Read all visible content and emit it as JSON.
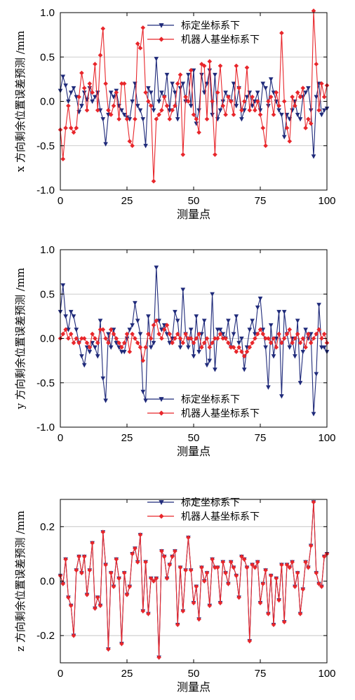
{
  "colors": {
    "calib": "#1f2a7a",
    "robot": "#e8262b",
    "grid": "#bdbdbd"
  },
  "chart_data": [
    {
      "type": "line",
      "ylabel": "x 方向剩余位置误差预测 /mm",
      "xlabel": "测量点",
      "xlim": [
        0,
        100
      ],
      "ylim": [
        -1.0,
        1.0
      ],
      "xticks": [
        "0",
        "25",
        "50",
        "75",
        "100"
      ],
      "yticks": [
        "-1.0",
        "-0.5",
        "0.0",
        "0.5",
        "1.0"
      ],
      "grid": "horizontal",
      "legend": "top-center",
      "series": [
        {
          "name": "标定坐标系下",
          "marker": "triangle-down",
          "values": [
            0.12,
            0.28,
            0.18,
            0.0,
            0.1,
            0.15,
            0.05,
            -0.12,
            -0.05,
            0.1,
            0.02,
            0.15,
            0.0,
            0.05,
            0.1,
            -0.1,
            -0.2,
            -0.48,
            -0.15,
            0.1,
            0.05,
            0.12,
            -0.05,
            -0.1,
            -0.15,
            -0.18,
            -0.2,
            0.0,
            0.2,
            -0.05,
            -0.1,
            -0.2,
            -0.5,
            0.15,
            0.1,
            -0.1,
            0.48,
            0.0,
            0.1,
            0.05,
            0.3,
            -0.1,
            0.2,
            0.1,
            -0.2,
            0.15,
            0.2,
            0.0,
            0.3,
            -0.05,
            0.35,
            -0.25,
            -0.1,
            0.3,
            0.1,
            0.2,
            0.35,
            -0.15,
            0.3,
            -0.2,
            -0.1,
            0.0,
            0.1,
            0.05,
            0.0,
            0.2,
            -0.05,
            0.15,
            -0.2,
            -0.1,
            0.05,
            0.1,
            -0.05,
            0.0,
            0.1,
            -0.1,
            0.2,
            0.15,
            -0.05,
            0.25,
            0.1,
            0.0,
            -0.1,
            -0.15,
            -0.4,
            -0.15,
            -0.2,
            -0.1,
            0.0,
            -0.15,
            -0.2,
            0.05,
            0.1,
            0.15,
            -0.1,
            -0.62,
            0.05,
            0.2,
            -0.15,
            -0.1,
            -0.08
          ]
        },
        {
          "name": "机器人基坐标系下",
          "marker": "diamond",
          "values": [
            -0.32,
            -0.65,
            -0.3,
            -0.05,
            -0.3,
            -0.35,
            -0.3,
            0.05,
            0.32,
            0.15,
            -0.1,
            0.2,
            0.1,
            0.42,
            -0.1,
            0.52,
            0.82,
            0.2,
            -0.1,
            -0.15,
            -0.05,
            0.1,
            -0.2,
            0.2,
            0.2,
            -0.2,
            -0.45,
            -0.5,
            -0.2,
            0.65,
            0.6,
            0.83,
            0.1,
            0.0,
            -0.05,
            -0.9,
            -0.2,
            -0.15,
            -0.1,
            0.05,
            -0.05,
            -0.2,
            -0.1,
            -0.05,
            0.2,
            0.3,
            -0.6,
            0.05,
            0.0,
            0.35,
            -0.15,
            -0.2,
            -0.35,
            0.42,
            0.4,
            -0.2,
            0.45,
            0.0,
            -0.6,
            0.1,
            0.4,
            -0.05,
            -0.15,
            0.05,
            0.0,
            -0.15,
            0.4,
            0.15,
            -0.1,
            0.0,
            0.38,
            -0.1,
            0.05,
            -0.1,
            0.0,
            -0.15,
            -0.3,
            -0.5,
            0.0,
            0.05,
            -0.15,
            0.1,
            -0.05,
            0.77,
            0.0,
            -0.3,
            -0.45,
            0.05,
            -0.05,
            0.1,
            0.05,
            0.15,
            -0.3,
            -0.2,
            -0.25,
            1.02,
            0.42,
            -0.1,
            0.2,
            0.05,
            0.18
          ]
        }
      ]
    },
    {
      "type": "line",
      "ylabel": "y 方向剩余位置误差预测 /mm",
      "xlabel": "测量点",
      "xlim": [
        0,
        100
      ],
      "ylim": [
        -1.0,
        1.0
      ],
      "xticks": [
        "0",
        "25",
        "50",
        "75",
        "100"
      ],
      "yticks": [
        "-1.0",
        "-0.5",
        "0.0",
        "0.5",
        "1.0"
      ],
      "grid": "horizontal",
      "legend": "bottom-center",
      "series": [
        {
          "name": "标定坐标系下",
          "marker": "triangle-down",
          "values": [
            0.3,
            0.6,
            0.25,
            0.1,
            0.3,
            0.25,
            0.1,
            -0.05,
            -0.2,
            -0.3,
            -0.1,
            -0.15,
            -0.05,
            -0.1,
            -0.2,
            0.2,
            -0.45,
            -0.7,
            0.05,
            -0.1,
            0.1,
            -0.05,
            -0.1,
            -0.15,
            -0.15,
            0.0,
            0.1,
            0.15,
            0.4,
            0.2,
            0.05,
            -0.6,
            -0.7,
            0.25,
            -0.1,
            -0.05,
            0.8,
            0.2,
            0.1,
            0.15,
            0.05,
            -0.05,
            0.0,
            0.3,
            0.2,
            -0.1,
            0.55,
            0.05,
            -0.1,
            0.1,
            -0.2,
            0.25,
            -0.15,
            0.05,
            0.2,
            -0.3,
            -0.25,
            0.5,
            -0.35,
            0.1,
            0.1,
            0.05,
            0.0,
            0.2,
            -0.1,
            0.05,
            0.25,
            -0.05,
            0.0,
            -0.35,
            -0.1,
            0.1,
            0.2,
            0.05,
            0.35,
            0.45,
            0.1,
            -0.1,
            -0.55,
            0.15,
            -0.2,
            0.0,
            0.3,
            -0.65,
            0.3,
            0.05,
            -0.1,
            0.0,
            -0.2,
            0.2,
            -0.5,
            -0.15,
            0.1,
            0.0,
            0.05,
            -0.85,
            -0.4,
            0.38,
            -0.1,
            -0.1,
            -0.15
          ]
        },
        {
          "name": "机器人基坐标系下",
          "marker": "diamond",
          "values": [
            0.0,
            0.05,
            0.1,
            0.0,
            0.05,
            -0.05,
            0.0,
            -0.05,
            0.0,
            0.0,
            -0.05,
            -0.1,
            0.05,
            0.0,
            -0.05,
            0.1,
            0.1,
            0.0,
            -0.05,
            0.1,
            0.05,
            0.0,
            -0.05,
            -0.1,
            -0.05,
            0.05,
            -0.15,
            0.05,
            0.0,
            -0.05,
            -0.1,
            -0.25,
            -0.1,
            0.05,
            0.0,
            0.15,
            0.2,
            0.05,
            0.0,
            0.1,
            0.15,
            0.05,
            -0.05,
            0.0,
            0.05,
            0.0,
            -0.05,
            0.05,
            0.0,
            0.0,
            -0.05,
            0.0,
            0.05,
            -0.1,
            -0.05,
            0.0,
            -0.1,
            -0.05,
            0.0,
            0.0,
            0.05,
            0.0,
            0.0,
            -0.05,
            -0.1,
            -0.1,
            -0.15,
            -0.1,
            -0.15,
            -0.2,
            -0.15,
            -0.1,
            -0.05,
            0.0,
            0.05,
            0.1,
            0.05,
            0.0,
            0.0,
            -0.05,
            0.0,
            -0.1,
            0.05,
            -0.05,
            0.0,
            0.05,
            0.1,
            -0.05,
            0.0,
            0.05,
            -0.05,
            0.0,
            -0.1,
            0.05,
            -0.05,
            0.0,
            0.05,
            0.1,
            0.0,
            0.05,
            -0.05
          ]
        }
      ]
    },
    {
      "type": "line",
      "ylabel": "z 方向剩余位置误差预测 /mm",
      "xlabel": "测量点",
      "xlim": [
        0,
        100
      ],
      "ylim": [
        -0.3,
        0.3
      ],
      "xticks": [
        "0",
        "25",
        "50",
        "75",
        "100"
      ],
      "yticks": [
        "-0.2",
        "0.0",
        "0.2"
      ],
      "ytickvals": [
        -0.2,
        0.0,
        0.2
      ],
      "grid": "horizontal",
      "legend": "top-center",
      "series": [
        {
          "name": "标定坐标系下",
          "marker": "triangle-down",
          "values": [
            0.02,
            -0.01,
            0.08,
            -0.06,
            -0.09,
            -0.2,
            0.04,
            0.09,
            0.03,
            0.09,
            -0.05,
            0.04,
            0.14,
            -0.1,
            -0.06,
            -0.09,
            0.18,
            0.06,
            -0.25,
            0.03,
            -0.02,
            0.08,
            0.01,
            -0.23,
            0.03,
            -0.05,
            -0.02,
            0.1,
            0.12,
            0.07,
            0.17,
            -0.11,
            0.07,
            -0.12,
            0.01,
            0.0,
            0.01,
            -0.28,
            0.11,
            0.09,
            0.01,
            0.06,
            0.09,
            0.11,
            -0.16,
            0.05,
            -0.11,
            0.04,
            0.16,
            0.04,
            -0.08,
            -0.02,
            -0.14,
            0.05,
            0.0,
            0.03,
            -0.09,
            0.08,
            0.05,
            0.05,
            -0.08,
            0.07,
            0.03,
            -0.01,
            0.07,
            0.05,
            0.02,
            -0.06,
            0.09,
            0.08,
            0.05,
            -0.22,
            0.06,
            0.05,
            0.07,
            -0.08,
            -0.01,
            0.04,
            -0.12,
            0.02,
            -0.16,
            0.01,
            -0.07,
            0.06,
            -0.15,
            0.06,
            0.05,
            0.07,
            -0.02,
            0.03,
            -0.12,
            -0.03,
            0.07,
            0.05,
            0.13,
            0.29,
            0.03,
            -0.01,
            -0.02,
            0.09,
            0.1
          ]
        },
        {
          "name": "机器人基坐标系下",
          "marker": "diamond",
          "values": [
            0.02,
            -0.01,
            0.08,
            -0.06,
            -0.09,
            -0.2,
            0.04,
            0.09,
            0.03,
            0.09,
            -0.05,
            0.04,
            0.14,
            -0.1,
            -0.06,
            -0.09,
            0.18,
            0.06,
            -0.25,
            0.03,
            -0.02,
            0.08,
            0.01,
            -0.23,
            0.03,
            -0.05,
            -0.02,
            0.1,
            0.12,
            0.07,
            0.17,
            -0.11,
            0.07,
            -0.12,
            0.01,
            0.0,
            0.01,
            -0.28,
            0.11,
            0.09,
            0.01,
            0.06,
            0.09,
            0.11,
            -0.16,
            0.05,
            -0.11,
            0.04,
            0.16,
            0.04,
            -0.08,
            -0.02,
            -0.14,
            0.05,
            0.0,
            0.03,
            -0.09,
            0.08,
            0.05,
            0.05,
            -0.08,
            0.07,
            0.03,
            -0.01,
            0.07,
            0.05,
            0.02,
            -0.06,
            0.09,
            0.08,
            0.05,
            -0.22,
            0.06,
            0.05,
            0.07,
            -0.08,
            -0.01,
            0.04,
            -0.12,
            0.02,
            -0.16,
            0.01,
            -0.07,
            0.06,
            -0.15,
            0.06,
            0.05,
            0.07,
            -0.02,
            0.03,
            -0.12,
            -0.03,
            0.07,
            0.05,
            0.13,
            0.29,
            0.03,
            -0.01,
            -0.02,
            0.09,
            0.1
          ]
        }
      ]
    }
  ]
}
